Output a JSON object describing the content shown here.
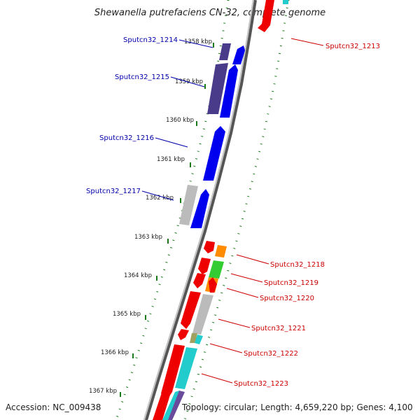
{
  "title": "Shewanella putrefaciens CN-32, complete genome",
  "footer": {
    "accession": "Accession: NC_009438",
    "topology": "Topology: circular; Length: 4,659,220 bp; Genes: 4,100"
  },
  "kbp_ticks": [
    "1358 kbp",
    "1359 kbp",
    "1360 kbp",
    "1361 kbp",
    "1362 kbp",
    "1363 kbp",
    "1364 kbp",
    "1365 kbp",
    "1366 kbp",
    "1367 kbp"
  ],
  "gene_labels": [
    {
      "text": "Sputcn32_1213",
      "color": "#cc0000",
      "side": "right"
    },
    {
      "text": "Sputcn32_1214",
      "color": "#0000aa",
      "side": "left"
    },
    {
      "text": "Sputcn32_1215",
      "color": "#0000aa",
      "side": "left"
    },
    {
      "text": "Sputcn32_1216",
      "color": "#0000aa",
      "side": "left"
    },
    {
      "text": "Sputcn32_1217",
      "color": "#0000aa",
      "side": "left"
    },
    {
      "text": "Sputcn32_1218",
      "color": "#cc0000",
      "side": "right"
    },
    {
      "text": "Sputcn32_1219",
      "color": "#cc0000",
      "side": "right"
    },
    {
      "text": "Sputcn32_1220",
      "color": "#cc0000",
      "side": "right"
    },
    {
      "text": "Sputcn32_1221",
      "color": "#cc0000",
      "side": "right"
    },
    {
      "text": "Sputcn32_1222",
      "color": "#cc0000",
      "side": "right"
    },
    {
      "text": "Sputcn32_1223",
      "color": "#cc0000",
      "side": "right"
    }
  ],
  "colors": {
    "cds_reverse": "#ee0000",
    "cds_forward": "#0000ee",
    "cds_forward_dark": "#4a3a8a",
    "backbone": "#888888",
    "tick": "#1a7a1a",
    "orange": "#ff8c00",
    "green": "#33cc33",
    "cyan": "#22cccc",
    "gray": "#bbbbbb",
    "olive": "#a0a060"
  }
}
